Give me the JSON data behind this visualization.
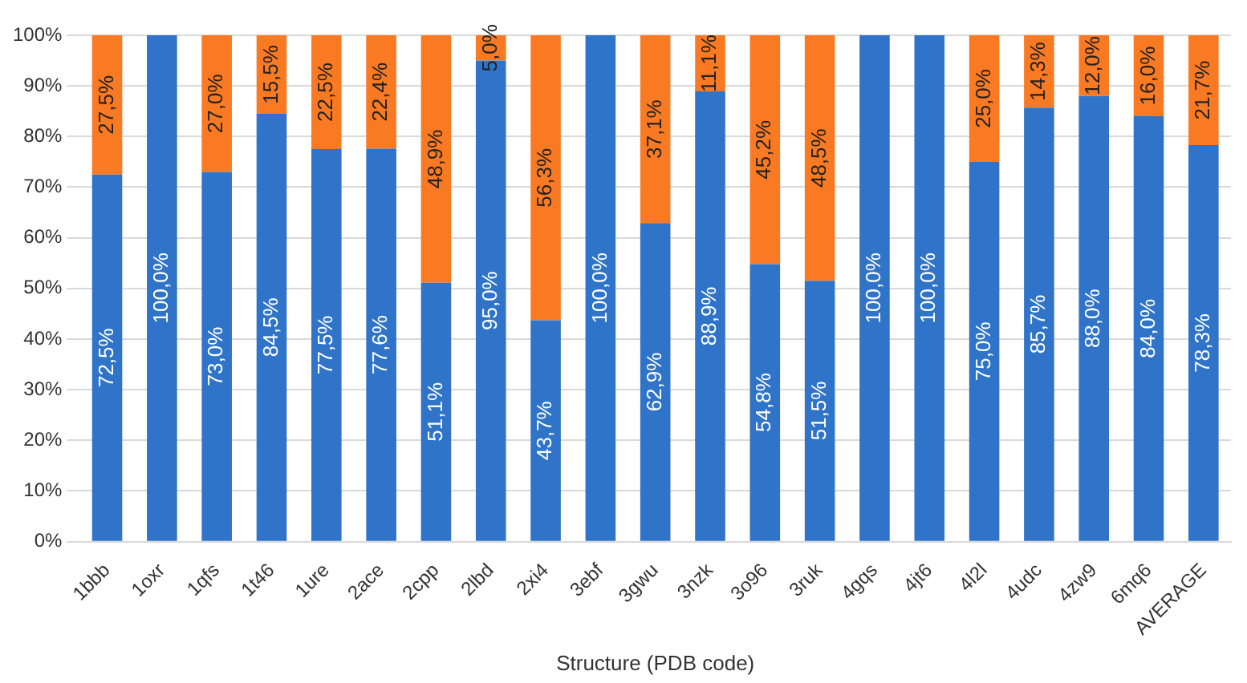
{
  "chart_data": {
    "type": "bar",
    "stacked": true,
    "xlabel": "Structure (PDB code)",
    "categories": [
      "1bbb",
      "1oxr",
      "1qfs",
      "1t46",
      "1ure",
      "2ace",
      "2cpp",
      "2lbd",
      "2xi4",
      "3ebf",
      "3gwu",
      "3nzk",
      "3o96",
      "3ruk",
      "4gqs",
      "4jt6",
      "4l2l",
      "4udc",
      "4zw9",
      "6mq6",
      "AVERAGE"
    ],
    "series": [
      {
        "color": "#2f74c8",
        "values": [
          72.5,
          100,
          73.0,
          84.5,
          77.5,
          77.6,
          51.1,
          95.0,
          43.7,
          100,
          62.9,
          88.9,
          54.8,
          51.5,
          100,
          100,
          75.0,
          85.7,
          88.0,
          84.0,
          78.3
        ],
        "value_labels": [
          "72,5%",
          "100,0%",
          "73,0%",
          "84,5%",
          "77,5%",
          "77,6%",
          "51,1%",
          "95,0%",
          "43,7%",
          "100,0%",
          "62,9%",
          "88,9%",
          "54,8%",
          "51,5%",
          "100,0%",
          "100,0%",
          "75,0%",
          "85,7%",
          "88,0%",
          "84,0%",
          "78,3%"
        ]
      },
      {
        "color": "#fa7a23",
        "values": [
          27.5,
          null,
          27.0,
          15.5,
          22.5,
          22.4,
          48.9,
          5.0,
          56.3,
          null,
          37.1,
          11.1,
          45.2,
          48.5,
          null,
          null,
          25.0,
          14.3,
          12.0,
          16.0,
          21.7
        ],
        "value_labels": [
          "27,5%",
          null,
          "27,0%",
          "15,5%",
          "22,5%",
          "22,4%",
          "48,9%",
          "5,0%",
          "56,3%",
          null,
          "37,1%",
          "11,1%",
          "45,2%",
          "48,5%",
          null,
          null,
          "25,0%",
          "14,3%",
          "12,0%",
          "16,0%",
          "21,7%"
        ]
      }
    ],
    "ylim": [
      0,
      100
    ],
    "yticks": [
      {
        "value": 0,
        "label": "0%"
      },
      {
        "value": 10,
        "label": "10%"
      },
      {
        "value": 20,
        "label": "20%"
      },
      {
        "value": 30,
        "label": "30%"
      },
      {
        "value": 40,
        "label": "40%"
      },
      {
        "value": 50,
        "label": "50%"
      },
      {
        "value": 60,
        "label": "60%"
      },
      {
        "value": 70,
        "label": "70%"
      },
      {
        "value": 80,
        "label": "80%"
      },
      {
        "value": 90,
        "label": "90%"
      },
      {
        "value": 100,
        "label": "100%"
      }
    ],
    "grid": "y"
  }
}
